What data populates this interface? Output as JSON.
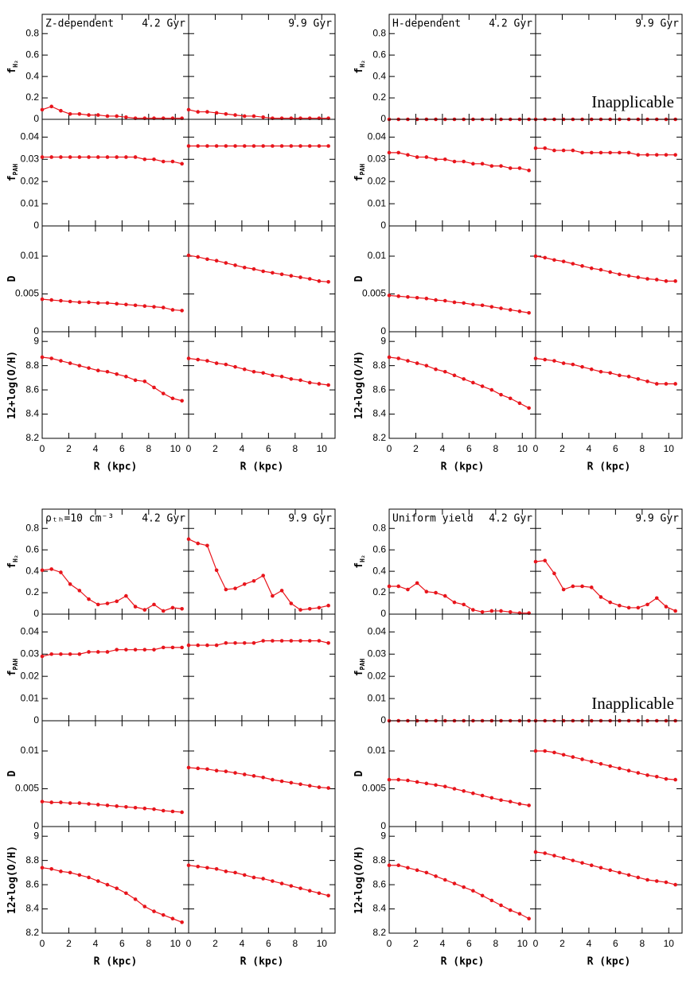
{
  "chart_data": {
    "type": "line",
    "color": "#e8141b",
    "x": [
      0,
      0.7,
      1.4,
      2.1,
      2.8,
      3.5,
      4.2,
      4.9,
      5.6,
      6.3,
      7.0,
      7.7,
      8.4,
      9.1,
      9.8,
      10.5
    ],
    "xlim": [
      0,
      11
    ],
    "xticks": [
      0,
      2,
      4,
      6,
      8,
      10
    ],
    "xlabel": "R (kpc)",
    "ages": [
      "4.2 Gyr",
      "9.9 Gyr"
    ],
    "rows": [
      {
        "ylabel": "f",
        "ylabel_sub": "H₂",
        "ylim": [
          0,
          0.98
        ],
        "yticks": [
          0,
          0.2,
          0.4,
          0.6,
          0.8
        ]
      },
      {
        "ylabel": "f",
        "ylabel_sub": "PAH",
        "ylim": [
          0,
          0.048
        ],
        "yticks": [
          0,
          0.01,
          0.02,
          0.03,
          0.04
        ]
      },
      {
        "ylabel": "D",
        "ylim": [
          0,
          0.014
        ],
        "yticks": [
          0,
          0.005,
          0.01
        ]
      },
      {
        "ylabel": "12+log(O/H)",
        "ylim": [
          8.2,
          9.08
        ],
        "yticks": [
          8.2,
          8.4,
          8.6,
          8.8,
          9
        ]
      }
    ],
    "groups": [
      {
        "title": "Z-dependent",
        "panels": [
          [
            {
              "values": [
                0.09,
                0.12,
                0.08,
                0.05,
                0.05,
                0.04,
                0.04,
                0.03,
                0.03,
                0.02,
                0.01,
                0.01,
                0.01,
                0.01,
                0.01,
                0.01
              ]
            },
            {
              "values": [
                0.09,
                0.07,
                0.07,
                0.06,
                0.05,
                0.04,
                0.03,
                0.03,
                0.02,
                0.01,
                0.01,
                0.01,
                0.01,
                0.01,
                0.01,
                0.01
              ]
            }
          ],
          [
            {
              "values": [
                0.031,
                0.031,
                0.031,
                0.031,
                0.031,
                0.031,
                0.031,
                0.031,
                0.031,
                0.031,
                0.031,
                0.03,
                0.03,
                0.029,
                0.029,
                0.028
              ]
            },
            {
              "values": [
                0.036,
                0.036,
                0.036,
                0.036,
                0.036,
                0.036,
                0.036,
                0.036,
                0.036,
                0.036,
                0.036,
                0.036,
                0.036,
                0.036,
                0.036,
                0.036
              ]
            }
          ],
          [
            {
              "values": [
                0.0043,
                0.0042,
                0.0041,
                0.004,
                0.0039,
                0.0039,
                0.0038,
                0.0038,
                0.0037,
                0.0036,
                0.0035,
                0.0034,
                0.0033,
                0.0032,
                0.0029,
                0.0028
              ]
            },
            {
              "values": [
                0.0101,
                0.0099,
                0.0096,
                0.0094,
                0.0091,
                0.0088,
                0.0085,
                0.0083,
                0.008,
                0.0078,
                0.0076,
                0.0074,
                0.0072,
                0.007,
                0.0067,
                0.0066
              ]
            }
          ],
          [
            {
              "values": [
                8.87,
                8.86,
                8.84,
                8.82,
                8.8,
                8.78,
                8.76,
                8.75,
                8.73,
                8.71,
                8.68,
                8.67,
                8.62,
                8.57,
                8.53,
                8.51
              ]
            },
            {
              "values": [
                8.86,
                8.85,
                8.84,
                8.82,
                8.81,
                8.79,
                8.77,
                8.75,
                8.74,
                8.72,
                8.71,
                8.69,
                8.68,
                8.66,
                8.65,
                8.64
              ]
            }
          ]
        ]
      },
      {
        "title": "H-dependent",
        "panels": [
          [
            {
              "values": [
                0,
                0,
                0,
                0,
                0,
                0,
                0,
                0,
                0,
                0,
                0,
                0,
                0,
                0,
                0,
                0
              ]
            },
            {
              "values": [
                0,
                0,
                0,
                0,
                0,
                0,
                0,
                0,
                0,
                0,
                0,
                0,
                0,
                0,
                0,
                0
              ],
              "note": "Inapplicable"
            }
          ],
          [
            {
              "values": [
                0.033,
                0.033,
                0.032,
                0.031,
                0.031,
                0.03,
                0.03,
                0.029,
                0.029,
                0.028,
                0.028,
                0.027,
                0.027,
                0.026,
                0.026,
                0.025
              ]
            },
            {
              "values": [
                0.035,
                0.035,
                0.034,
                0.034,
                0.034,
                0.033,
                0.033,
                0.033,
                0.033,
                0.033,
                0.033,
                0.032,
                0.032,
                0.032,
                0.032,
                0.032
              ]
            }
          ],
          [
            {
              "values": [
                0.0048,
                0.0047,
                0.0046,
                0.0045,
                0.0044,
                0.0042,
                0.0041,
                0.0039,
                0.0038,
                0.0036,
                0.0035,
                0.0033,
                0.0031,
                0.0029,
                0.0027,
                0.0025
              ]
            },
            {
              "values": [
                0.01,
                0.0098,
                0.0095,
                0.0093,
                0.009,
                0.0087,
                0.0084,
                0.0082,
                0.0079,
                0.0076,
                0.0074,
                0.0072,
                0.007,
                0.0069,
                0.0067,
                0.0067
              ]
            }
          ],
          [
            {
              "values": [
                8.87,
                8.86,
                8.84,
                8.82,
                8.8,
                8.77,
                8.75,
                8.72,
                8.69,
                8.66,
                8.63,
                8.6,
                8.56,
                8.53,
                8.49,
                8.45
              ]
            },
            {
              "values": [
                8.86,
                8.85,
                8.84,
                8.82,
                8.81,
                8.79,
                8.77,
                8.75,
                8.74,
                8.72,
                8.71,
                8.69,
                8.67,
                8.65,
                8.65,
                8.65
              ]
            }
          ]
        ]
      },
      {
        "title": "ρₜₕ=10 cm⁻³",
        "panels": [
          [
            {
              "values": [
                0.41,
                0.42,
                0.39,
                0.28,
                0.22,
                0.14,
                0.09,
                0.1,
                0.12,
                0.17,
                0.07,
                0.04,
                0.09,
                0.03,
                0.06,
                0.05
              ]
            },
            {
              "values": [
                0.7,
                0.66,
                0.64,
                0.41,
                0.23,
                0.24,
                0.28,
                0.31,
                0.36,
                0.17,
                0.22,
                0.1,
                0.04,
                0.05,
                0.06,
                0.08
              ]
            }
          ],
          [
            {
              "values": [
                0.029,
                0.03,
                0.03,
                0.03,
                0.03,
                0.031,
                0.031,
                0.031,
                0.032,
                0.032,
                0.032,
                0.032,
                0.032,
                0.033,
                0.033,
                0.033
              ]
            },
            {
              "values": [
                0.034,
                0.034,
                0.034,
                0.034,
                0.035,
                0.035,
                0.035,
                0.035,
                0.036,
                0.036,
                0.036,
                0.036,
                0.036,
                0.036,
                0.036,
                0.035
              ]
            }
          ],
          [
            {
              "values": [
                0.0033,
                0.0032,
                0.0032,
                0.0031,
                0.0031,
                0.003,
                0.0029,
                0.0028,
                0.0027,
                0.0026,
                0.0025,
                0.0024,
                0.0023,
                0.0021,
                0.002,
                0.0019
              ]
            },
            {
              "values": [
                0.0078,
                0.0077,
                0.0076,
                0.0074,
                0.0073,
                0.0071,
                0.0069,
                0.0067,
                0.0065,
                0.0062,
                0.006,
                0.0058,
                0.0056,
                0.0054,
                0.0052,
                0.0051
              ]
            }
          ],
          [
            {
              "values": [
                8.74,
                8.73,
                8.71,
                8.7,
                8.68,
                8.66,
                8.63,
                8.6,
                8.57,
                8.53,
                8.48,
                8.42,
                8.38,
                8.35,
                8.32,
                8.29
              ]
            },
            {
              "values": [
                8.76,
                8.75,
                8.74,
                8.73,
                8.71,
                8.7,
                8.68,
                8.66,
                8.65,
                8.63,
                8.61,
                8.59,
                8.57,
                8.55,
                8.53,
                8.51
              ]
            }
          ]
        ]
      },
      {
        "title": "Uniform yield",
        "panels": [
          [
            {
              "values": [
                0.26,
                0.26,
                0.23,
                0.29,
                0.21,
                0.2,
                0.17,
                0.11,
                0.09,
                0.04,
                0.02,
                0.03,
                0.03,
                0.02,
                0.01,
                0.01
              ]
            },
            {
              "values": [
                0.49,
                0.5,
                0.38,
                0.23,
                0.26,
                0.26,
                0.25,
                0.16,
                0.11,
                0.08,
                0.06,
                0.06,
                0.09,
                0.15,
                0.07,
                0.03
              ]
            }
          ],
          [
            {
              "values": [
                0,
                0,
                0,
                0,
                0,
                0,
                0,
                0,
                0,
                0,
                0,
                0,
                0,
                0,
                0,
                0
              ]
            },
            {
              "values": [
                0,
                0,
                0,
                0,
                0,
                0,
                0,
                0,
                0,
                0,
                0,
                0,
                0,
                0,
                0,
                0
              ],
              "note": "Inapplicable"
            }
          ],
          [
            {
              "values": [
                0.0062,
                0.0062,
                0.0061,
                0.0059,
                0.0057,
                0.0055,
                0.0053,
                0.005,
                0.0047,
                0.0044,
                0.0041,
                0.0038,
                0.0035,
                0.0033,
                0.003,
                0.0028
              ]
            },
            {
              "values": [
                0.01,
                0.01,
                0.0098,
                0.0095,
                0.0092,
                0.0089,
                0.0086,
                0.0083,
                0.008,
                0.0077,
                0.0074,
                0.0071,
                0.0068,
                0.0066,
                0.0063,
                0.0062
              ]
            }
          ],
          [
            {
              "values": [
                8.76,
                8.76,
                8.74,
                8.72,
                8.7,
                8.67,
                8.64,
                8.61,
                8.58,
                8.55,
                8.51,
                8.47,
                8.43,
                8.39,
                8.36,
                8.32
              ]
            },
            {
              "values": [
                8.87,
                8.86,
                8.84,
                8.82,
                8.8,
                8.78,
                8.76,
                8.74,
                8.72,
                8.7,
                8.68,
                8.66,
                8.64,
                8.63,
                8.62,
                8.6
              ]
            }
          ]
        ]
      }
    ]
  }
}
